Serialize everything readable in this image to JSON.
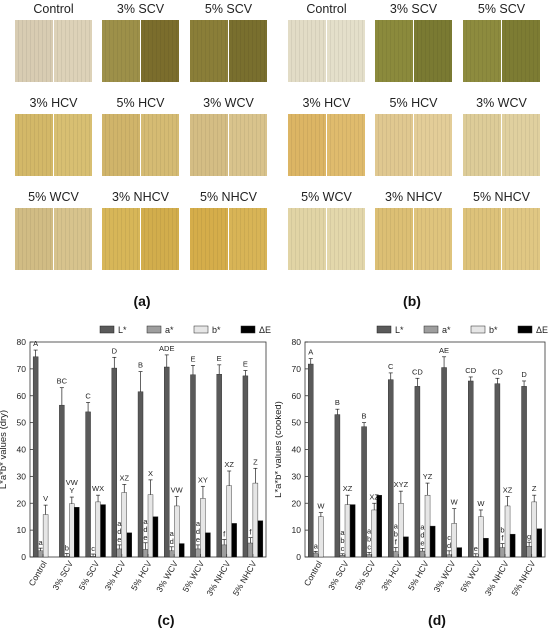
{
  "panels": {
    "a": "(a)",
    "b": "(b)",
    "c": "(c)",
    "d": "(d)"
  },
  "photo_labels": [
    "Control",
    "3% SCV",
    "5% SCV",
    "3% HCV",
    "5% HCV",
    "3% WCV",
    "5% WCV",
    "3% NHCV",
    "5% NHCV"
  ],
  "photos": {
    "dry": [
      {
        "label": "Control",
        "left": "#d8ccb2",
        "right": "#ddd2b8"
      },
      {
        "label": "3% SCV",
        "left": "#9d9049",
        "right": "#7b6d2c"
      },
      {
        "label": "5% SCV",
        "left": "#8a7e38",
        "right": "#796f2e"
      },
      {
        "label": "3% HCV",
        "left": "#d3b868",
        "right": "#d8bf72"
      },
      {
        "label": "5% HCV",
        "left": "#d0b46a",
        "right": "#d5bb73"
      },
      {
        "label": "3% WCV",
        "left": "#d4bd84",
        "right": "#d9c38c"
      },
      {
        "label": "5% WCV",
        "left": "#d1bc84",
        "right": "#d7c38d"
      },
      {
        "label": "3% NHCV",
        "left": "#d7b658",
        "right": "#d2ad4c"
      },
      {
        "label": "5% NHCV",
        "left": "#d5ad4a",
        "right": "#d8b456"
      }
    ],
    "cooked": [
      {
        "label": "Control",
        "left": "#e2dcc6",
        "right": "#e4dfca"
      },
      {
        "label": "3% SCV",
        "left": "#8b8a3c",
        "right": "#7a7a32"
      },
      {
        "label": "5% SCV",
        "left": "#8d8b3e",
        "right": "#7d7c33"
      },
      {
        "label": "3% HCV",
        "left": "#dcb564",
        "right": "#dfbb6d"
      },
      {
        "label": "5% HCV",
        "left": "#e0c890",
        "right": "#e3cd98"
      },
      {
        "label": "3% WCV",
        "left": "#ddcc98",
        "right": "#e0d09f"
      },
      {
        "label": "5% WCV",
        "left": "#e1d4a5",
        "right": "#e3d7ab"
      },
      {
        "label": "3% NHCV",
        "left": "#dcbf74",
        "right": "#dfc47d"
      },
      {
        "label": "5% NHCV",
        "left": "#ddc27a",
        "right": "#e0c783"
      }
    ]
  },
  "chart_data": [
    {
      "type": "bar",
      "panel": "c",
      "ylabel": "L*a*b* values (dry)",
      "ylim": [
        0,
        80
      ],
      "yticks": [
        0,
        10,
        20,
        30,
        40,
        50,
        60,
        70,
        80
      ],
      "categories": [
        "Control",
        "3% SCV",
        "5% SCV",
        "3% HCV",
        "5% HCV",
        "3% WCV",
        "5% WCV",
        "3% NHCV",
        "5% NHCV"
      ],
      "legend": [
        "L*",
        "a*",
        "b*",
        "ΔE"
      ],
      "colors": [
        "#5a5a5a",
        "#9e9e9e",
        "#e6e6e6",
        "#000000"
      ],
      "series": [
        {
          "name": "L*",
          "values": [
            74.5,
            56.5,
            54.0,
            70.3,
            61.5,
            70.7,
            67.8,
            68.0,
            67.4
          ],
          "errors": [
            2.5,
            6.5,
            3.5,
            4.0,
            7.5,
            4.5,
            3.5,
            3.5,
            2.0
          ],
          "letters": [
            "A",
            "BC",
            "C",
            "D",
            "B",
            "ADE",
            "E",
            "E",
            "E"
          ]
        },
        {
          "name": "a*",
          "values": [
            2.3,
            0.3,
            0.3,
            3.0,
            2.8,
            2.3,
            3.0,
            4.5,
            5.2
          ],
          "errors": [
            1.0,
            1.0,
            0.8,
            1.5,
            2.5,
            1.5,
            1.5,
            2.0,
            2.0
          ],
          "letters": [
            "a",
            "b",
            "c",
            "a\nd\ne",
            "a\nd\ne",
            "a\nd",
            "a\nd\ne",
            "f",
            "f"
          ]
        },
        {
          "name": "b*",
          "values": [
            15.8,
            19.8,
            20.5,
            24.0,
            23.2,
            19.0,
            21.8,
            26.5,
            27.5
          ],
          "errors": [
            3.5,
            2.5,
            2.5,
            3.0,
            5.5,
            3.5,
            4.5,
            5.5,
            5.5
          ],
          "letters": [
            "V",
            "VW\nY",
            "WX",
            "XZ",
            "X",
            "VW",
            "XY",
            "XZ",
            "Z"
          ]
        },
        {
          "name": "ΔE",
          "values": [
            0,
            18.5,
            19.5,
            9.0,
            15.0,
            5.0,
            9.0,
            12.5,
            13.5
          ],
          "errors": [
            0,
            0,
            0,
            0,
            0,
            0,
            0,
            0,
            0
          ],
          "letters": [
            "",
            "",
            "",
            "",
            "",
            "",
            "",
            "",
            ""
          ]
        }
      ]
    },
    {
      "type": "bar",
      "panel": "d",
      "ylabel": "L*a*b* values (cooked)",
      "ylim": [
        0,
        80
      ],
      "yticks": [
        0,
        10,
        20,
        30,
        40,
        50,
        60,
        70,
        80
      ],
      "categories": [
        "Control",
        "3% SCV",
        "5% SCV",
        "3% HCV",
        "5% HCV",
        "3% WCV",
        "5% WCV",
        "3% NHCV",
        "5% NHCV"
      ],
      "legend": [
        "L*",
        "a*",
        "b*",
        "ΔE"
      ],
      "colors": [
        "#5a5a5a",
        "#9e9e9e",
        "#e6e6e6",
        "#000000"
      ],
      "series": [
        {
          "name": "L*",
          "values": [
            71.8,
            53.0,
            48.5,
            66.0,
            63.5,
            70.5,
            65.5,
            64.5,
            63.5
          ],
          "errors": [
            2.0,
            2.0,
            1.5,
            2.5,
            3.0,
            4.0,
            1.5,
            2.0,
            2.0
          ],
          "letters": [
            "A",
            "B",
            "B",
            "C",
            "CD",
            "AE",
            "CD",
            "CD",
            "D"
          ]
        },
        {
          "name": "a*",
          "values": [
            1.5,
            0.6,
            0.9,
            2.0,
            2.2,
            0.8,
            0.2,
            3.5,
            4.0
          ],
          "errors": [
            0.6,
            0.6,
            0.8,
            1.5,
            1.0,
            1.5,
            1.0,
            1.5,
            1.5
          ],
          "letters": [
            "a",
            "a\nb\nc",
            "a\nb\nc",
            "a\nb\nf",
            "a\nd\ne",
            "c\nd",
            "e",
            "b\nf",
            "g"
          ]
        },
        {
          "name": "b*",
          "values": [
            15.0,
            19.5,
            17.5,
            20.0,
            23.0,
            12.5,
            15.0,
            19.0,
            20.5
          ],
          "errors": [
            1.5,
            3.5,
            2.5,
            4.5,
            4.5,
            5.5,
            2.5,
            3.5,
            2.5
          ],
          "letters": [
            "W",
            "XZ",
            "XZ",
            "XYZ",
            "YZ",
            "W",
            "W",
            "XZ",
            "Z"
          ]
        },
        {
          "name": "ΔE",
          "values": [
            0,
            19.5,
            23.0,
            7.5,
            11.5,
            3.5,
            7.0,
            8.5,
            10.5
          ],
          "errors": [
            0,
            0,
            0,
            0,
            0,
            0,
            0,
            0,
            0
          ],
          "letters": [
            "",
            "",
            "",
            "",
            "",
            "",
            "",
            "",
            ""
          ]
        }
      ]
    }
  ]
}
